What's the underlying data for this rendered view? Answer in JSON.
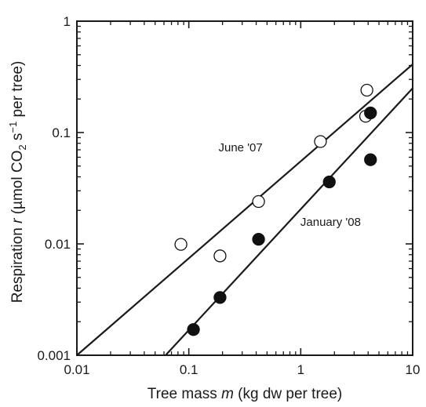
{
  "chart_data": {
    "type": "scatter",
    "x_scale": "log",
    "y_scale": "log",
    "xlim": [
      0.01,
      10
    ],
    "ylim": [
      0.001,
      1
    ],
    "grid": false,
    "x_ticks": [
      {
        "value": 0.01,
        "label": "0.01"
      },
      {
        "value": 0.1,
        "label": "0.1"
      },
      {
        "value": 1,
        "label": "1"
      },
      {
        "value": 10,
        "label": "10"
      }
    ],
    "y_ticks": [
      {
        "value": 0.001,
        "label": "0.001"
      },
      {
        "value": 0.01,
        "label": "0.01"
      },
      {
        "value": 0.1,
        "label": "0.1"
      },
      {
        "value": 1,
        "label": "1"
      }
    ],
    "xlabel": {
      "pre": "Tree mass ",
      "var": "m",
      "post": " (kg dw per tree)"
    },
    "ylabel": {
      "pre": "Respiration ",
      "var": "r",
      "mid": " (µmol CO",
      "sub": "2",
      "mid2": " s",
      "sup": "−1",
      "post": " per tree)"
    },
    "series": [
      {
        "name": "June '07",
        "marker": "open-circle",
        "points": [
          {
            "x": 0.085,
            "y": 0.0099
          },
          {
            "x": 0.19,
            "y": 0.0078
          },
          {
            "x": 0.42,
            "y": 0.024
          },
          {
            "x": 1.5,
            "y": 0.083
          },
          {
            "x": 3.8,
            "y": 0.14
          },
          {
            "x": 3.9,
            "y": 0.24
          }
        ],
        "fit_line": [
          {
            "x": 0.01,
            "y": 0.001
          },
          {
            "x": 10,
            "y": 0.41
          }
        ]
      },
      {
        "name": "January '08",
        "marker": "filled-circle",
        "points": [
          {
            "x": 0.11,
            "y": 0.0017
          },
          {
            "x": 0.19,
            "y": 0.0033
          },
          {
            "x": 0.42,
            "y": 0.011
          },
          {
            "x": 1.8,
            "y": 0.036
          },
          {
            "x": 4.2,
            "y": 0.057
          },
          {
            "x": 4.2,
            "y": 0.15
          }
        ],
        "fit_line": [
          {
            "x": 0.062,
            "y": 0.001
          },
          {
            "x": 10,
            "y": 0.25
          }
        ]
      }
    ],
    "annotations": [
      {
        "text": "June '07",
        "x": 0.29,
        "y": 0.068
      },
      {
        "text": "January '08",
        "x": 1.85,
        "y": 0.0145
      }
    ]
  }
}
